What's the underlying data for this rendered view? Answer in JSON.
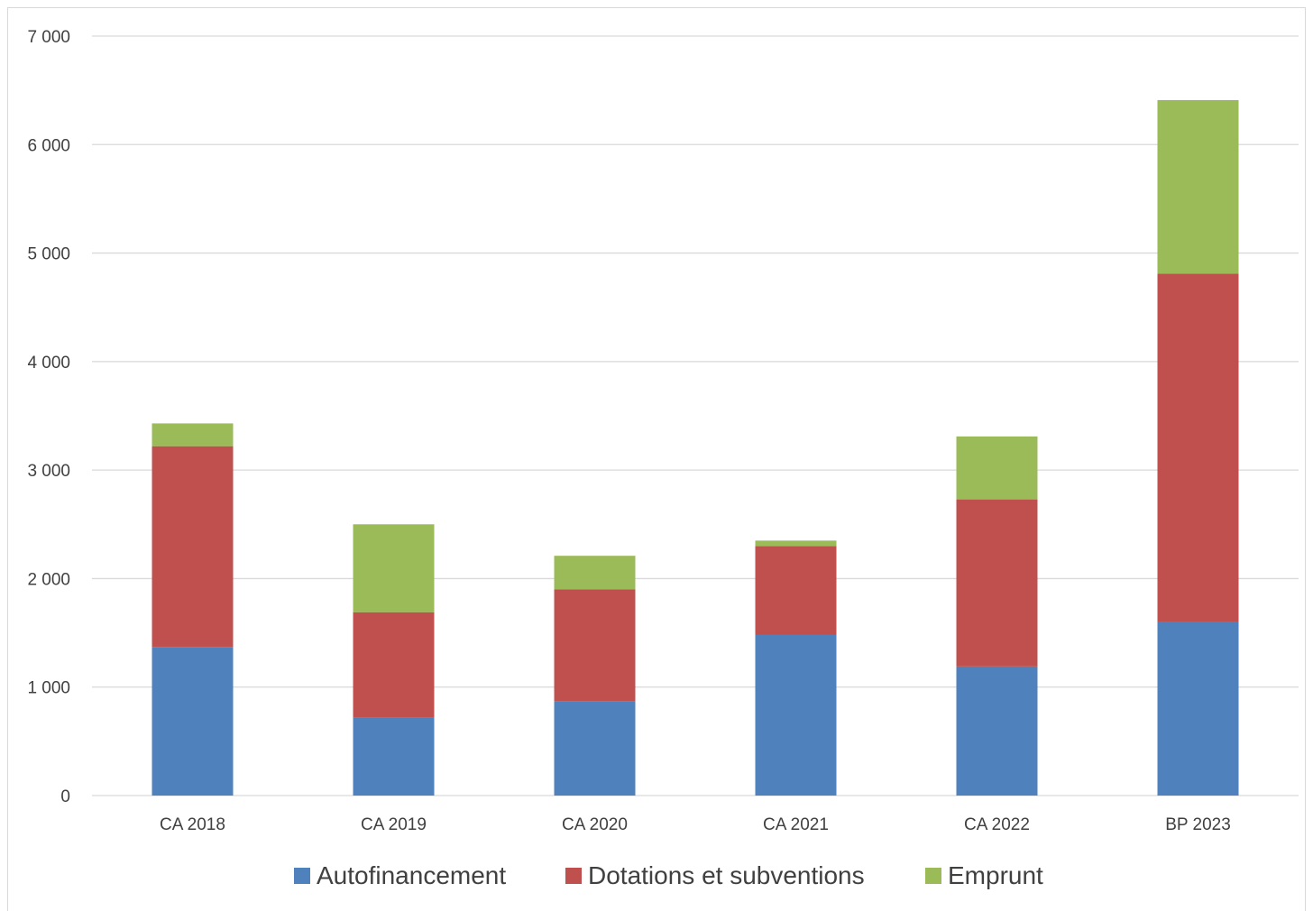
{
  "chart_data": {
    "type": "bar",
    "stacked": true,
    "title": "",
    "xlabel": "",
    "ylabel": "",
    "ylim": [
      0,
      7000
    ],
    "yticks": [
      0,
      1000,
      2000,
      3000,
      4000,
      5000,
      6000,
      7000
    ],
    "ytick_labels": [
      "0",
      "1 000",
      "2 000",
      "3 000",
      "4 000",
      "5 000",
      "6 000",
      "7 000"
    ],
    "grid": true,
    "legend_position": "bottom",
    "categories": [
      "CA 2018",
      "CA 2019",
      "CA 2020",
      "CA 2021",
      "CA 2022",
      "BP 2023"
    ],
    "series": [
      {
        "name": "Autofinancement",
        "color": "#4f81bd",
        "values": [
          1370,
          720,
          870,
          1480,
          1190,
          1600
        ]
      },
      {
        "name": "Dotations et subventions",
        "color": "#c0504d",
        "values": [
          1850,
          970,
          1030,
          820,
          1540,
          3210
        ]
      },
      {
        "name": "Emprunt",
        "color": "#9bbb59",
        "values": [
          210,
          810,
          310,
          50,
          580,
          1600
        ]
      }
    ]
  }
}
